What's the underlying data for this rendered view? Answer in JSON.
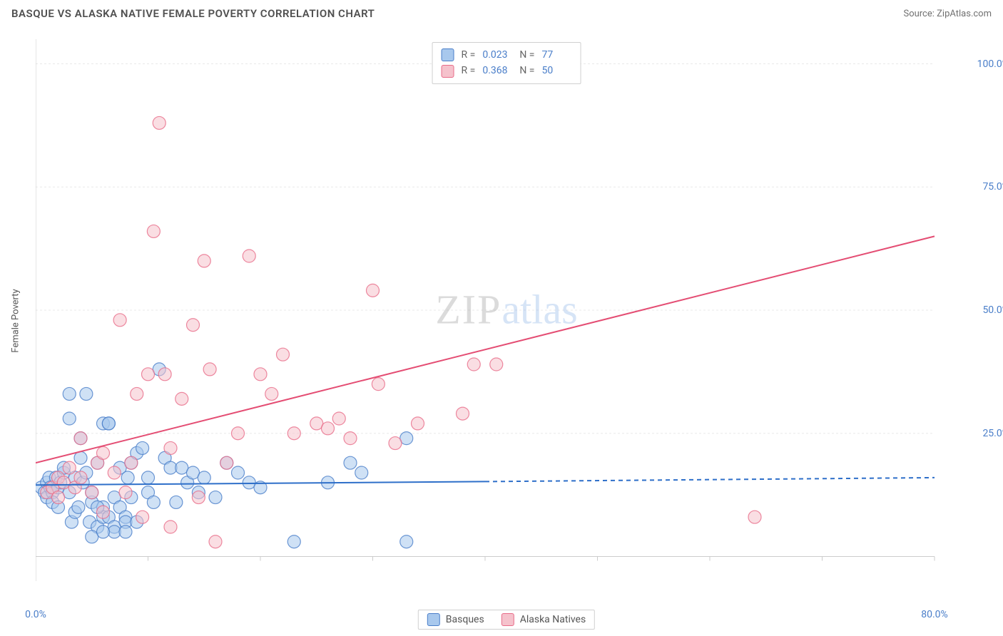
{
  "title": "BASQUE VS ALASKA NATIVE FEMALE POVERTY CORRELATION CHART",
  "source_prefix": "Source: ",
  "source_name": "ZipAtlas.com",
  "watermark_zip": "ZIP",
  "watermark_atlas": "atlas",
  "chart": {
    "type": "scatter",
    "y_label": "Female Poverty",
    "x_range": [
      0,
      80
    ],
    "y_range": [
      -5,
      105
    ],
    "x_ticks": [
      0,
      10,
      20,
      30,
      40,
      50,
      60,
      70,
      80
    ],
    "x_tick_labels": {
      "0": "0.0%",
      "80": "80.0%"
    },
    "y_ticks": [
      25,
      50,
      75,
      100
    ],
    "y_tick_labels": {
      "25": "25.0%",
      "50": "50.0%",
      "75": "75.0%",
      "100": "100.0%"
    },
    "grid_color": "#e8e8e8",
    "axis_color": "#cccccc",
    "background": "#ffffff",
    "marker_radius": 9,
    "marker_opacity": 0.55,
    "series": [
      {
        "name": "Basques",
        "color_fill": "#a8c8ed",
        "color_stroke": "#4a7ec9",
        "r_label": "R = ",
        "r_value": "0.023",
        "n_label": "N = ",
        "n_value": "77",
        "trend": {
          "x1": 0,
          "y1": 14.5,
          "x2": 40,
          "y2": 15.2,
          "dash_x2": 80,
          "dash_y2": 16,
          "color": "#2e6fc9",
          "width": 2
        },
        "points": [
          [
            0.5,
            14
          ],
          [
            0.8,
            13
          ],
          [
            1,
            15
          ],
          [
            1,
            12
          ],
          [
            1.2,
            16
          ],
          [
            1.3,
            14
          ],
          [
            1.5,
            13
          ],
          [
            1.5,
            11
          ],
          [
            1.8,
            16
          ],
          [
            2,
            14
          ],
          [
            2,
            10
          ],
          [
            2.2,
            15
          ],
          [
            2.5,
            17
          ],
          [
            2.5,
            18
          ],
          [
            3,
            13
          ],
          [
            3,
            28
          ],
          [
            3.2,
            7
          ],
          [
            3.5,
            9
          ],
          [
            3.5,
            16
          ],
          [
            4,
            24
          ],
          [
            4,
            20
          ],
          [
            4.2,
            15
          ],
          [
            4.5,
            17
          ],
          [
            4.8,
            7
          ],
          [
            5,
            11
          ],
          [
            5,
            13
          ],
          [
            5.5,
            19
          ],
          [
            5.5,
            6
          ],
          [
            6,
            10
          ],
          [
            6,
            8
          ],
          [
            6,
            27
          ],
          [
            6.5,
            8
          ],
          [
            6.5,
            27
          ],
          [
            7,
            12
          ],
          [
            7,
            6
          ],
          [
            7.5,
            10
          ],
          [
            7.5,
            18
          ],
          [
            8,
            8
          ],
          [
            8,
            7
          ],
          [
            8.2,
            16
          ],
          [
            8.5,
            12
          ],
          [
            8.5,
            19
          ],
          [
            9,
            21
          ],
          [
            9.5,
            22
          ],
          [
            10,
            13
          ],
          [
            10,
            16
          ],
          [
            10.5,
            11
          ],
          [
            11,
            38
          ],
          [
            11.5,
            20
          ],
          [
            12,
            18
          ],
          [
            12.5,
            11
          ],
          [
            13,
            18
          ],
          [
            13.5,
            15
          ],
          [
            14,
            17
          ],
          [
            14.5,
            13
          ],
          [
            15,
            16
          ],
          [
            16,
            12
          ],
          [
            17,
            19
          ],
          [
            18,
            17
          ],
          [
            19,
            15
          ],
          [
            20,
            14
          ],
          [
            7,
            5
          ],
          [
            8,
            5
          ],
          [
            6.5,
            27
          ],
          [
            4.5,
            33
          ],
          [
            3,
            33
          ],
          [
            5,
            4
          ],
          [
            6,
            5
          ],
          [
            9,
            7
          ],
          [
            5.5,
            10
          ],
          [
            3.8,
            10
          ],
          [
            33,
            24
          ],
          [
            28,
            19
          ],
          [
            26,
            15
          ],
          [
            23,
            3
          ],
          [
            29,
            17
          ],
          [
            33,
            3
          ]
        ]
      },
      {
        "name": "Alaska Natives",
        "color_fill": "#f5c2cc",
        "color_stroke": "#e86b88",
        "r_label": "R = ",
        "r_value": "0.368",
        "n_label": "N = ",
        "n_value": "50",
        "trend": {
          "x1": 0,
          "y1": 19,
          "x2": 80,
          "y2": 65,
          "color": "#e44d73",
          "width": 2
        },
        "points": [
          [
            1,
            13
          ],
          [
            1.5,
            14
          ],
          [
            2,
            12
          ],
          [
            2,
            16
          ],
          [
            2.5,
            15
          ],
          [
            3,
            18
          ],
          [
            3.5,
            14
          ],
          [
            4,
            16
          ],
          [
            4,
            24
          ],
          [
            5,
            13
          ],
          [
            5.5,
            19
          ],
          [
            6,
            9
          ],
          [
            6,
            21
          ],
          [
            7,
            17
          ],
          [
            7.5,
            48
          ],
          [
            8,
            13
          ],
          [
            8.5,
            19
          ],
          [
            9,
            33
          ],
          [
            9.5,
            8
          ],
          [
            10,
            37
          ],
          [
            10.5,
            66
          ],
          [
            11,
            88
          ],
          [
            11.5,
            37
          ],
          [
            12,
            22
          ],
          [
            13,
            32
          ],
          [
            14,
            47
          ],
          [
            14.5,
            12
          ],
          [
            15,
            60
          ],
          [
            15.5,
            38
          ],
          [
            16,
            3
          ],
          [
            17,
            19
          ],
          [
            18,
            25
          ],
          [
            19,
            61
          ],
          [
            20,
            37
          ],
          [
            21,
            33
          ],
          [
            22,
            41
          ],
          [
            23,
            25
          ],
          [
            25,
            27
          ],
          [
            26,
            26
          ],
          [
            27,
            28
          ],
          [
            28,
            24
          ],
          [
            30,
            54
          ],
          [
            30.5,
            35
          ],
          [
            32,
            23
          ],
          [
            34,
            27
          ],
          [
            38,
            29
          ],
          [
            39,
            39
          ],
          [
            41,
            39
          ],
          [
            64,
            8
          ],
          [
            12,
            6
          ]
        ]
      }
    ]
  },
  "legend_bottom": [
    {
      "swatch_fill": "#a8c8ed",
      "swatch_stroke": "#4a7ec9",
      "label": "Basques"
    },
    {
      "swatch_fill": "#f5c2cc",
      "swatch_stroke": "#e86b88",
      "label": "Alaska Natives"
    }
  ]
}
